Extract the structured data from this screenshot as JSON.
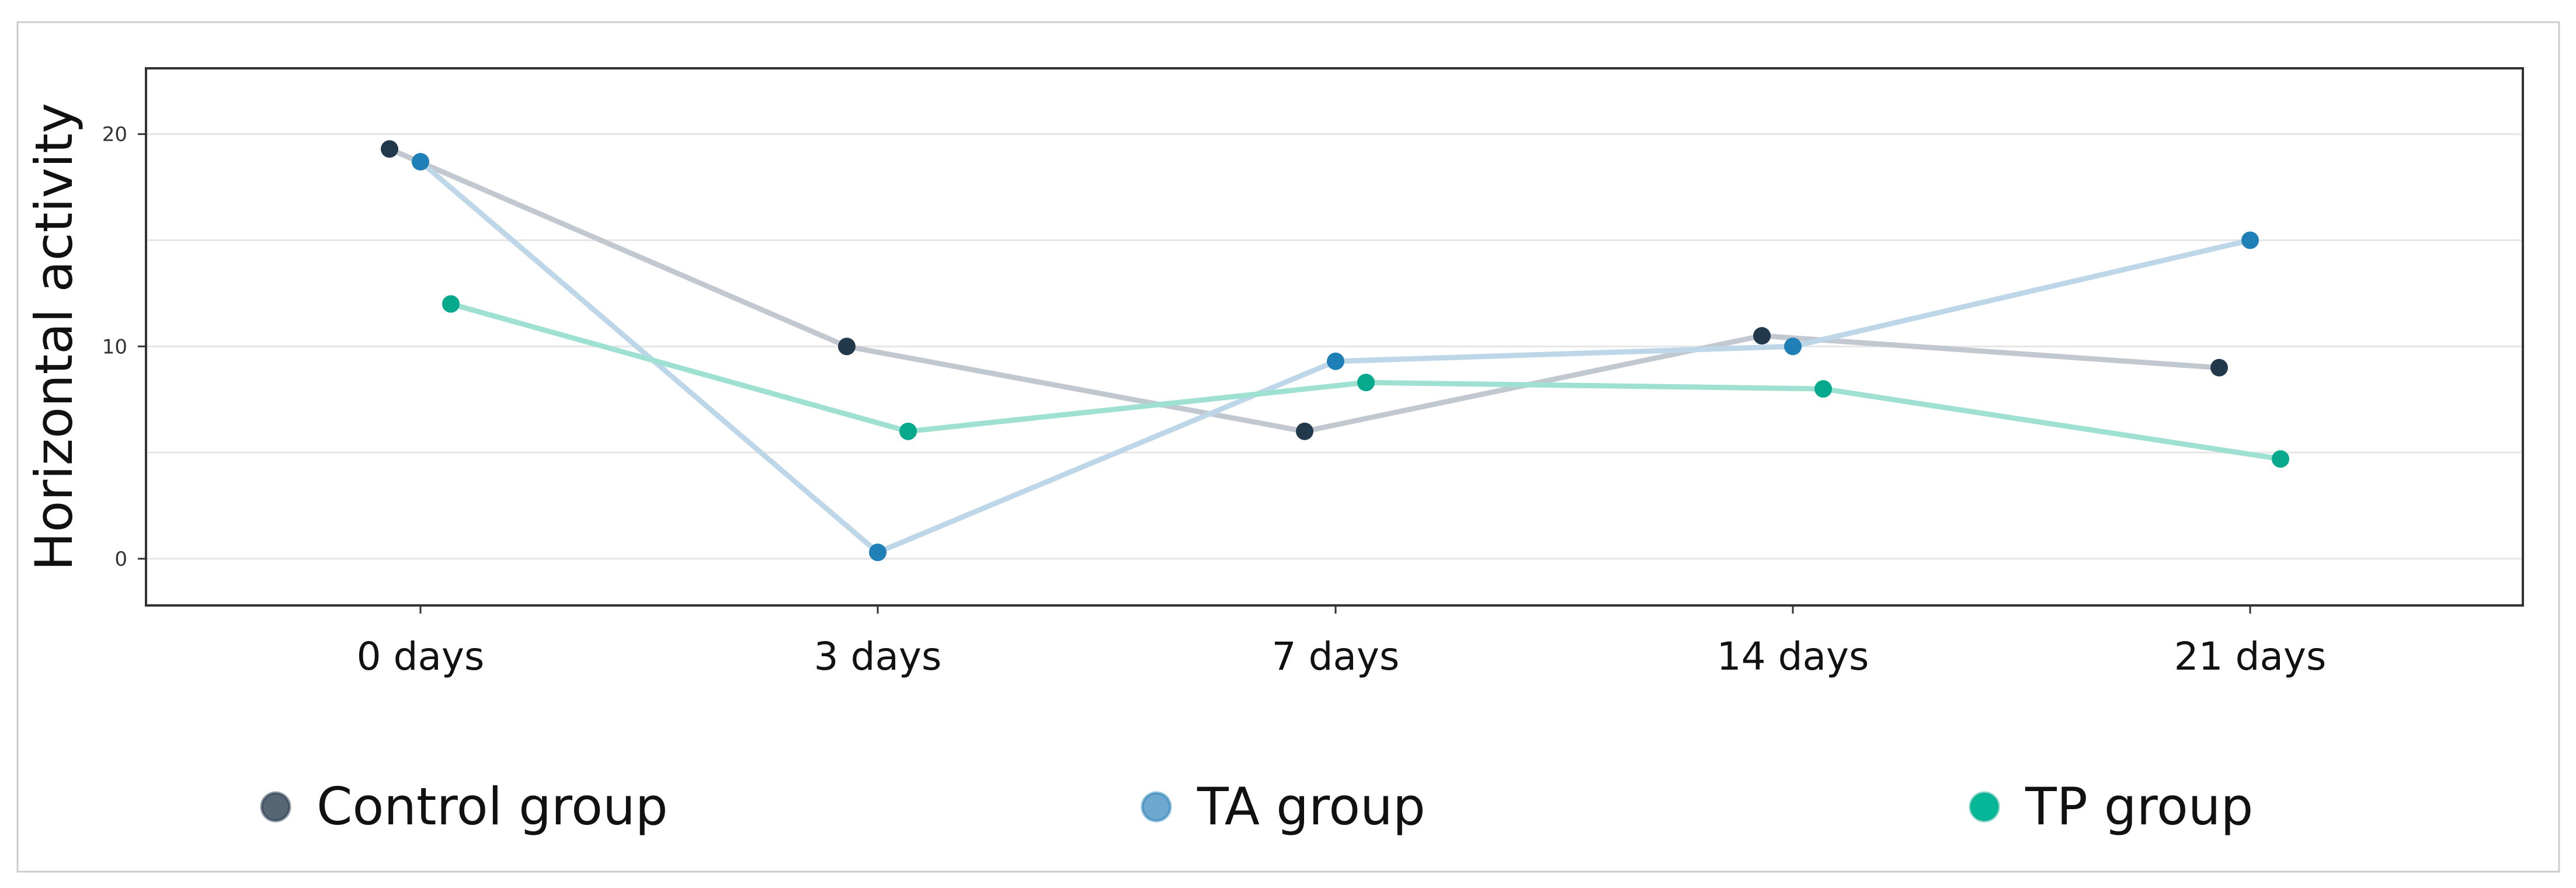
{
  "chart_data": {
    "type": "line",
    "title": "",
    "xlabel": "",
    "ylabel": "Horizontal activity",
    "categories": [
      "0 days",
      "3 days",
      "7 days",
      "14 days",
      "21 days"
    ],
    "ylim": [
      -2.2,
      23.1
    ],
    "yticks": [
      0,
      10,
      20
    ],
    "grid": true,
    "legend_position": "bottom",
    "series": [
      {
        "name": "Control group",
        "values": [
          19.3,
          10.0,
          6.0,
          10.5,
          9.0
        ],
        "line_color": "#c2c8d0",
        "marker_color": "#22384b",
        "legend_color": "#566674"
      },
      {
        "name": "TA group",
        "values": [
          18.7,
          0.3,
          9.3,
          10.0,
          15.0
        ],
        "line_color": "#bdd6e8",
        "marker_color": "#1f7fb7",
        "legend_color": "#6ea8d0"
      },
      {
        "name": "TP group",
        "values": [
          12.0,
          6.0,
          8.3,
          8.0,
          4.7
        ],
        "line_color": "#9ee0d2",
        "marker_color": "#06a98c",
        "legend_color": "#07b898"
      }
    ],
    "colors": {
      "panel_border": "#333333",
      "grid": "#e6e6e6",
      "outer_border": "#cccccc",
      "tick_text": "#333333"
    }
  }
}
